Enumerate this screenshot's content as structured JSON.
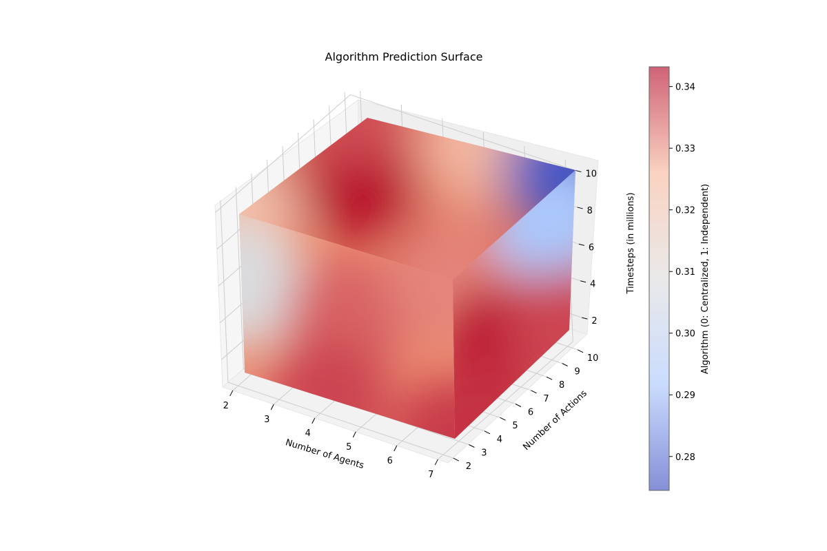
{
  "chart_data": {
    "type": "3d-volume",
    "title": "Algorithm Prediction Surface",
    "xlabel": "Number of Agents",
    "ylabel": "Number of Actions",
    "zlabel": "Timesteps (in millions)",
    "colorbar_label": "Algorithm (0: Centralized, 1: Independent)",
    "colormap": "coolwarm",
    "colormap_colors": [
      "#3b4cc0",
      "#aac7fd",
      "#dddcdc",
      "#f7b89c",
      "#b40426"
    ],
    "xlim": [
      2,
      7
    ],
    "ylim": [
      2,
      10
    ],
    "zlim": [
      1,
      10
    ],
    "x_ticks": [
      "2",
      "3",
      "4",
      "5",
      "6",
      "7"
    ],
    "y_ticks": [
      "2",
      "3",
      "4",
      "5",
      "6",
      "7",
      "8",
      "9",
      "10"
    ],
    "z_ticks": [
      "2",
      "4",
      "6",
      "8",
      "10"
    ],
    "colorbar_range": [
      0.2745,
      0.3432
    ],
    "colorbar_ticks": [
      "0.28",
      "0.29",
      "0.30",
      "0.31",
      "0.32",
      "0.33",
      "0.34"
    ],
    "grid": true,
    "faces": {
      "top": {
        "description_values": "prediction at z=10 over agents (x) × actions (y)",
        "hotspots": [
          {
            "x": 2,
            "y": 2,
            "value": 0.322
          },
          {
            "x": 3.5,
            "y": 6,
            "value": 0.343
          },
          {
            "x": 7,
            "y": 2,
            "value": 0.331
          },
          {
            "x": 2,
            "y": 10,
            "value": 0.336
          },
          {
            "x": 5,
            "y": 10,
            "value": 0.325
          },
          {
            "x": 7,
            "y": 10,
            "value": 0.276
          }
        ]
      },
      "front": {
        "description_values": "prediction at actions=2 over agents (x) × timesteps (z)",
        "hotspots": [
          {
            "x": 2,
            "z": 10,
            "value": 0.322
          },
          {
            "x": 2,
            "z": 6,
            "value": 0.308
          },
          {
            "x": 4.5,
            "z": 6,
            "value": 0.334
          },
          {
            "x": 4,
            "z": 1,
            "value": 0.337
          },
          {
            "x": 7,
            "z": 1,
            "value": 0.338
          },
          {
            "x": 7,
            "z": 10,
            "value": 0.331
          }
        ]
      },
      "side": {
        "description_values": "prediction at agents=7 over actions (y) × timesteps (z)",
        "hotspots": [
          {
            "y": 2,
            "z": 10,
            "value": 0.331
          },
          {
            "y": 10,
            "z": 10,
            "value": 0.276
          },
          {
            "y": 9,
            "z": 8,
            "value": 0.292
          },
          {
            "y": 5,
            "z": 4,
            "value": 0.341
          },
          {
            "y": 3,
            "z": 1,
            "value": 0.339
          },
          {
            "y": 10,
            "z": 1,
            "value": 0.337
          }
        ]
      }
    }
  }
}
